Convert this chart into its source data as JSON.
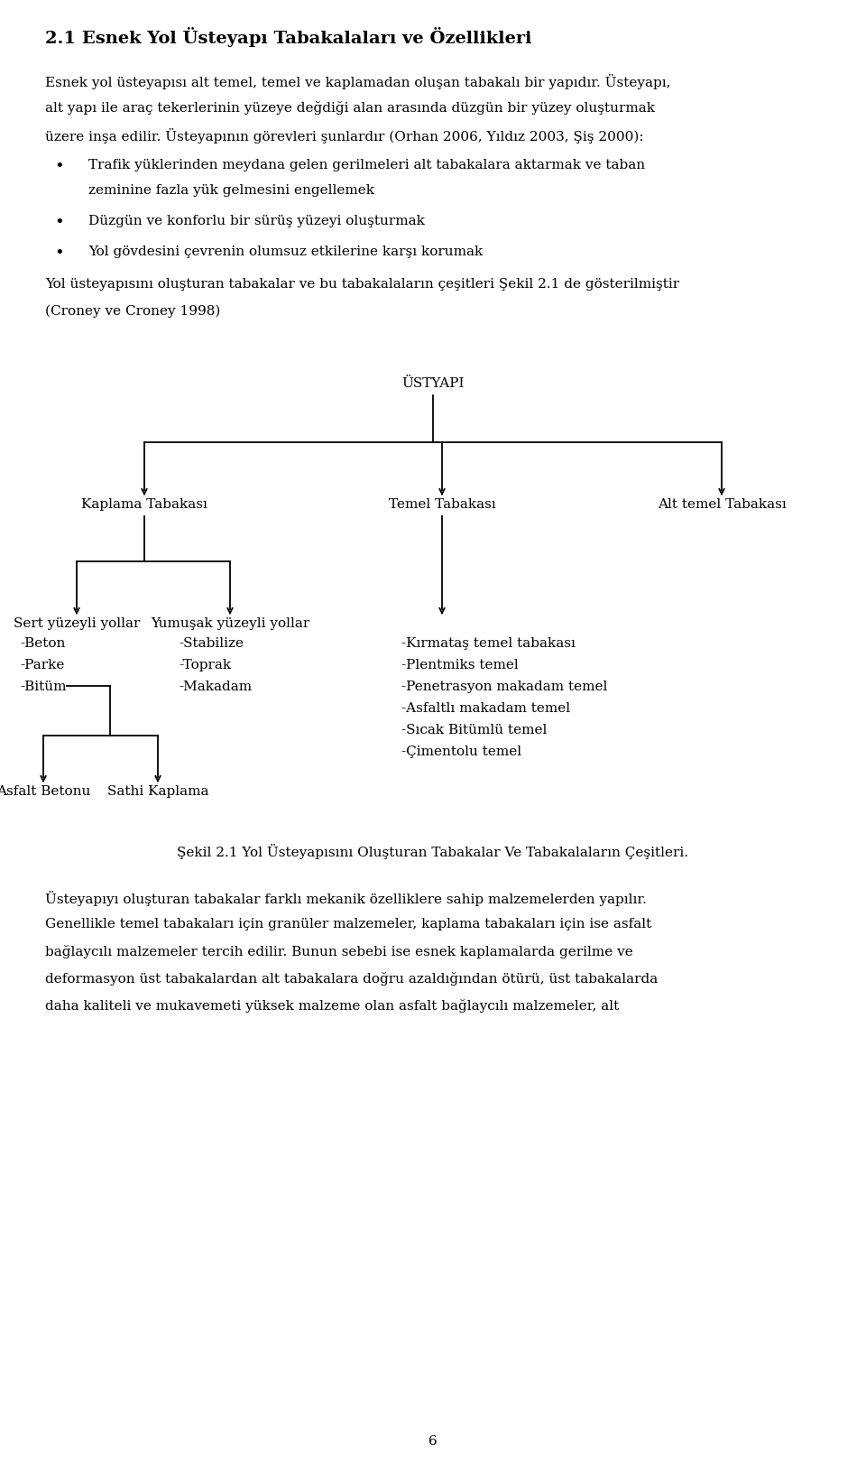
{
  "bg_color": "#ffffff",
  "text_color": "#000000",
  "heading": "2.1 Esnek Yol Üsteyapı Tabakalaları ve Özellikleri",
  "para1_lines": [
    "Esnek yol üsteyapısı alt temel, temel ve kaplamadan oluşan tabakalı bir yapıdır. Üsteyapı,",
    "alt yapı ile araç tekerlerinin yüzeye değdiği alan arasında düzgün bir yüzey oluşturmak",
    "üzere inşa edilir. Üsteyapının görevleri şunlardır (Orhan 2006, Yıldız 2003, Şiş 2000):"
  ],
  "bullets": [
    [
      "Trafik yüklerinden meydana gelen gerilmeleri alt tabakalara aktarmak ve taban",
      "zeminine fazla yük gelmesini engellemek"
    ],
    [
      "Düzgün ve konforlu bir sürüş yüzeyi oluşturmak"
    ],
    [
      "Yol gövdesini çevrenin olumsuz etkilerine karşı korumak"
    ]
  ],
  "para2_lines": [
    "Yol üsteyapısını oluşturan tabakalar ve bu tabakalaların çeşitleri Şekil 2.1 de gösterilmiştir",
    "(Croney ve Croney 1998)"
  ],
  "diagram_title": "ÜSTYAPI",
  "node_kaplama": "Kaplama Tabakası",
  "node_temel": "Temel Tabakası",
  "node_alt_temel": "Alt temel Tabakası",
  "node_sert": "Sert yüzeyli yollar",
  "node_yumusak": "Yumuşak yüzeyli yollar",
  "sert_items": [
    "-Beton",
    "-Parke",
    "-Bitüm"
  ],
  "yumusak_items": [
    "-Stabilize",
    "-Toprak",
    "-Makadam"
  ],
  "kirm_items": [
    "-Kırmataş temel tabakası",
    "-Plentmiks temel",
    "-Penetrasyon makadam temel",
    "-Asfaltlı makadam temel",
    "-Sıcak Bitümlü temel",
    "-Çimentolu temel"
  ],
  "bitum_children": [
    "Asfalt Betonu",
    "Sathi Kaplama"
  ],
  "caption": "Şekil 2.1 Yol Üsteyapısını Oluşturan Tabakalar Ve Tabakalaların Çeşitleri.",
  "para3_lines": [
    "Üsteyapıyı oluşturan tabakalar farklı mekanik özelliklere sahip malzemelerden yapılır.",
    "Genellikle temel tabakaları için granüler malzemeler, kaplama tabakaları için ise asfalt",
    "bağlaycılı malzemeler tercih edilir. Bunun sebebi ise esnek kaplamalarda gerilme ve",
    "deformasyon üst tabakalardan alt tabakalara doğru azaldığından ötürü, üst tabakalarda",
    "daha kaliteli ve mukavemeti yüksek malzeme olan asfalt bağlaycılı malzemeler, alt"
  ],
  "page_num": "6"
}
